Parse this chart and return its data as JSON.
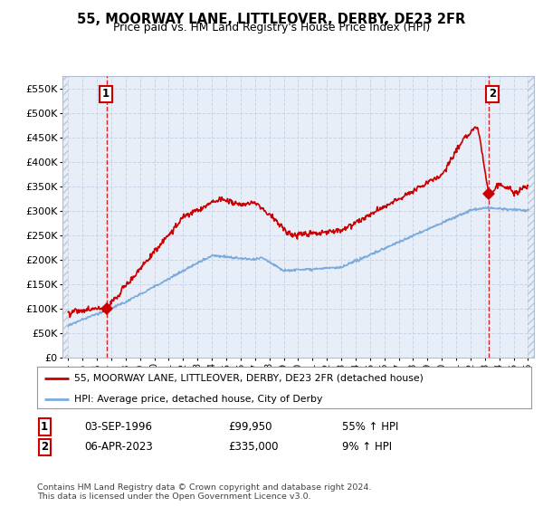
{
  "title": "55, MOORWAY LANE, LITTLEOVER, DERBY, DE23 2FR",
  "subtitle": "Price paid vs. HM Land Registry's House Price Index (HPI)",
  "ylim": [
    0,
    575000
  ],
  "yticks": [
    0,
    50000,
    100000,
    150000,
    200000,
    250000,
    300000,
    350000,
    400000,
    450000,
    500000,
    550000
  ],
  "ytick_labels": [
    "£0",
    "£50K",
    "£100K",
    "£150K",
    "£200K",
    "£250K",
    "£300K",
    "£350K",
    "£400K",
    "£450K",
    "£500K",
    "£550K"
  ],
  "xlim_start": 1993.6,
  "xlim_end": 2026.4,
  "xticks": [
    1994,
    1995,
    1996,
    1997,
    1998,
    1999,
    2000,
    2001,
    2002,
    2003,
    2004,
    2005,
    2006,
    2007,
    2008,
    2009,
    2010,
    2011,
    2012,
    2013,
    2014,
    2015,
    2016,
    2017,
    2018,
    2019,
    2020,
    2021,
    2022,
    2023,
    2024,
    2025,
    2026
  ],
  "red_line_color": "#cc0000",
  "blue_line_color": "#7aabdb",
  "point1_x": 1996.68,
  "point1_y": 99950,
  "point2_x": 2023.27,
  "point2_y": 335000,
  "point1_date": "03-SEP-1996",
  "point1_price": "£99,950",
  "point1_hpi": "55% ↑ HPI",
  "point2_date": "06-APR-2023",
  "point2_price": "£335,000",
  "point2_hpi": "9% ↑ HPI",
  "legend_line1": "55, MOORWAY LANE, LITTLEOVER, DERBY, DE23 2FR (detached house)",
  "legend_line2": "HPI: Average price, detached house, City of Derby",
  "footer1": "Contains HM Land Registry data © Crown copyright and database right 2024.",
  "footer2": "This data is licensed under the Open Government Licence v3.0.",
  "background_color": "#ffffff",
  "plot_bg_color": "#e8eef8",
  "grid_color": "#c8d4e8"
}
